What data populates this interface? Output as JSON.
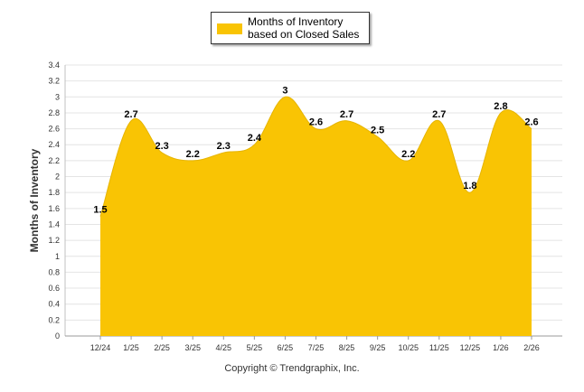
{
  "legend": {
    "label": "Months of Inventory based on Closed Sales",
    "color": "#f9c404"
  },
  "credit": "Copyright © Trendgraphix, Inc.",
  "chart_data": {
    "type": "area",
    "title": "",
    "xlabel": "",
    "ylabel": "Months of Inventory",
    "ylim": [
      0,
      3.4
    ],
    "yticks": [
      "0",
      "0.2",
      "0.4",
      "0.6",
      "0.8",
      "1",
      "1.2",
      "1.4",
      "1.6",
      "1.8",
      "2",
      "2.2",
      "2.4",
      "2.6",
      "2.8",
      "3",
      "3.2",
      "3.4"
    ],
    "grid": true,
    "legend_position": "top-center",
    "categories": [
      "12/24",
      "1/25",
      "2/25",
      "3/25",
      "4/25",
      "5/25",
      "6/25",
      "7/25",
      "8/25",
      "9/25",
      "10/25",
      "11/25",
      "12/25",
      "1/26",
      "2/26"
    ],
    "series": [
      {
        "name": "Months of Inventory based on Closed Sales",
        "color": "#f9c404",
        "values": [
          1.5,
          2.7,
          2.3,
          2.2,
          2.3,
          2.4,
          3,
          2.6,
          2.7,
          2.5,
          2.2,
          2.7,
          1.8,
          2.8,
          2.6
        ],
        "labels": [
          "1.5",
          "2.7",
          "2.3",
          "2.2",
          "2.3",
          "2.4",
          "3",
          "2.6",
          "2.7",
          "2.5",
          "2.2",
          "2.7",
          "1.8",
          "2.8",
          "2.6"
        ]
      }
    ]
  }
}
